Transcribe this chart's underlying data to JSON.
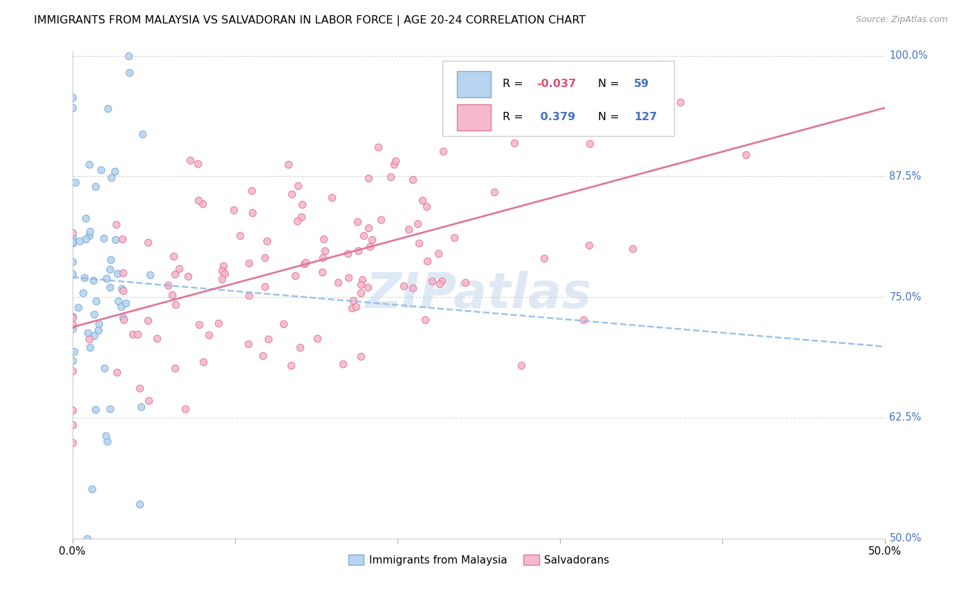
{
  "title": "IMMIGRANTS FROM MALAYSIA VS SALVADORAN IN LABOR FORCE | AGE 20-24 CORRELATION CHART",
  "source": "Source: ZipAtlas.com",
  "legend_label1": "Immigrants from Malaysia",
  "legend_label2": "Salvadorans",
  "R1": -0.037,
  "N1": 59,
  "R2": 0.379,
  "N2": 127,
  "color_malaysia_fill": "#b8d4f0",
  "color_malaysia_edge": "#7aaad8",
  "color_salvadoran_fill": "#f5b8cc",
  "color_salvadoran_edge": "#e07898",
  "color_malaysia_line": "#88b8e8",
  "color_salvadoran_line": "#e07898",
  "xmin": 0.0,
  "xmax": 0.5,
  "ymin": 0.5,
  "ymax": 1.005,
  "watermark": "ZIPatlas",
  "watermark_color": "#b8d0ec",
  "right_label_color": "#4472c4",
  "legend_R_color": "#e05070",
  "legend_N_color": "#4472c4"
}
